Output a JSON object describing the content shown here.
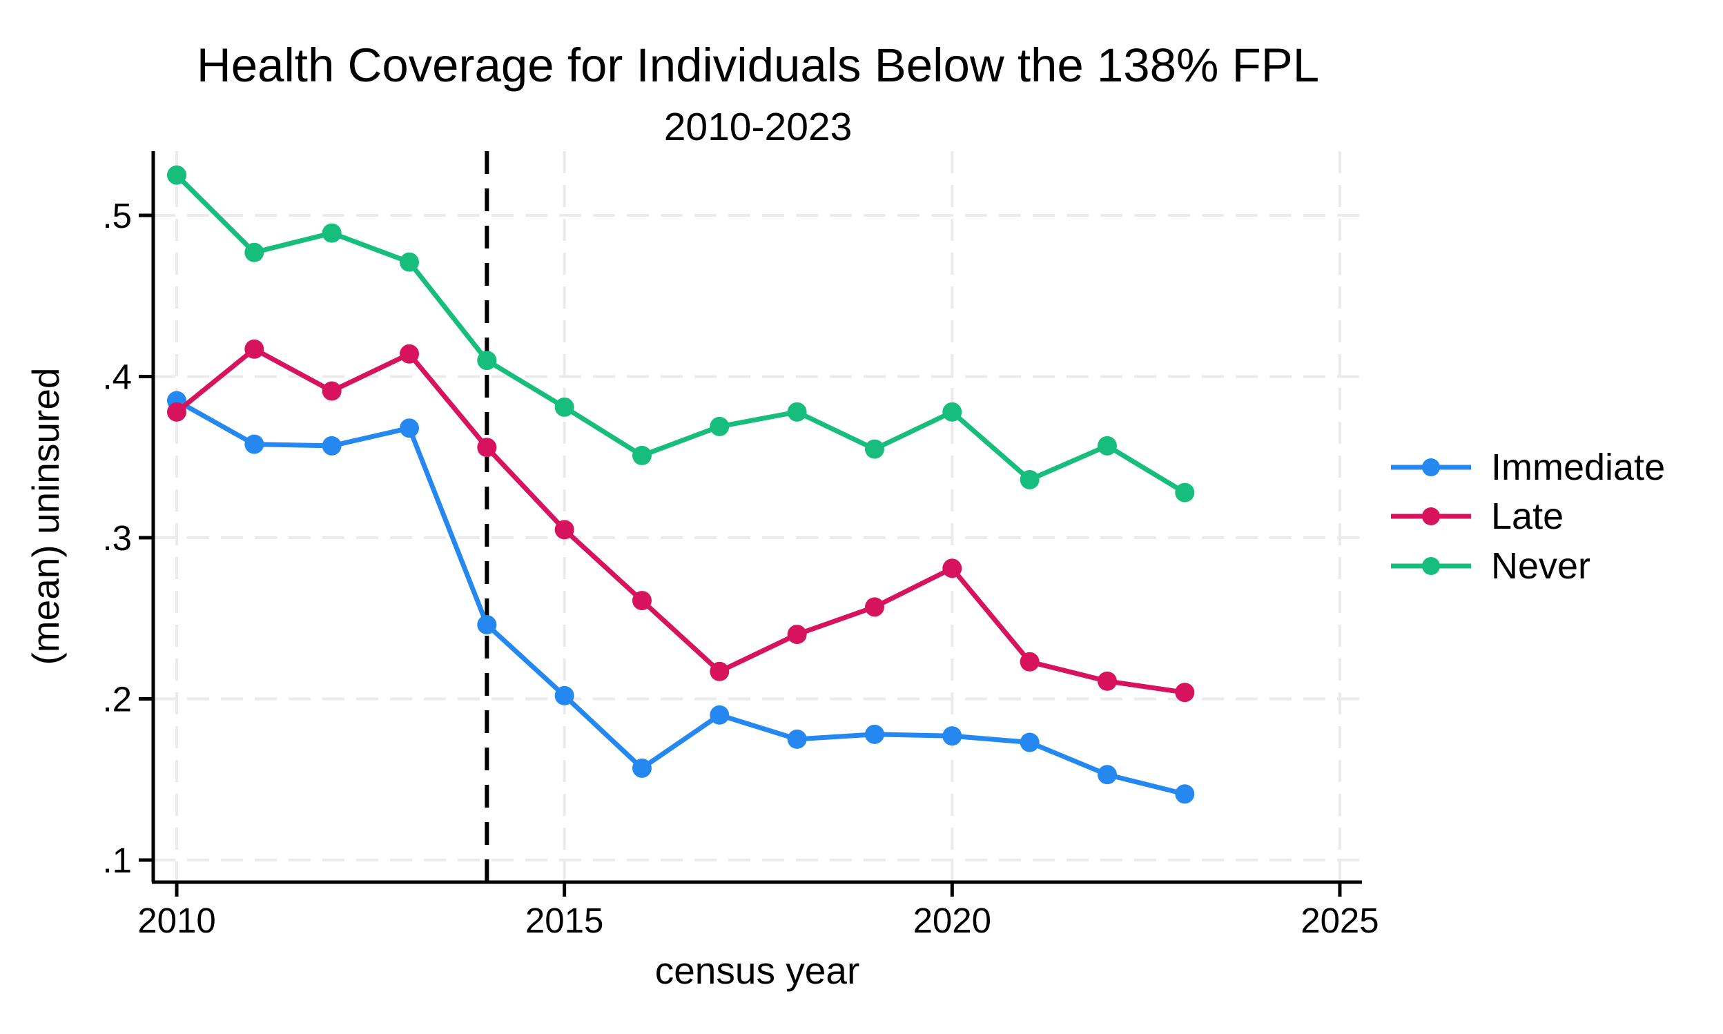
{
  "page": {
    "background": "#ffffff",
    "text_color": "#000000",
    "grid_color": "#EBEBEB"
  },
  "chart_data": {
    "type": "line",
    "title": "Health Coverage for Individuals Below the 138% FPL",
    "subtitle": "2010-2023",
    "xlabel": "census year",
    "ylabel": "(mean) uninsured",
    "x": [
      2010,
      2011,
      2012,
      2013,
      2014,
      2015,
      2016,
      2017,
      2018,
      2019,
      2020,
      2021,
      2022,
      2023
    ],
    "x_ticks": [
      2010,
      2015,
      2020,
      2025
    ],
    "x_tick_labels": [
      "2010",
      "2015",
      "2020",
      "2025"
    ],
    "y_ticks": [
      0.1,
      0.2,
      0.3,
      0.4,
      0.5
    ],
    "y_tick_labels": [
      ".1",
      ".2",
      ".3",
      ".4",
      ".5"
    ],
    "xlim": [
      2009.7,
      2025.3
    ],
    "ylim": [
      0.086,
      0.54
    ],
    "grid": "dashed",
    "legend_position": "right",
    "reference_line": {
      "x": 2014,
      "style": "dashed",
      "color": "#000000"
    },
    "series": [
      {
        "name": "Immediate",
        "color": "#2488F0",
        "values": [
          0.385,
          0.358,
          0.357,
          0.368,
          0.246,
          0.202,
          0.157,
          0.19,
          0.175,
          0.178,
          0.177,
          0.173,
          0.153,
          0.141
        ]
      },
      {
        "name": "Late",
        "color": "#D8135E",
        "values": [
          0.378,
          0.417,
          0.391,
          0.414,
          0.356,
          0.305,
          0.261,
          0.217,
          0.24,
          0.257,
          0.281,
          0.223,
          0.211,
          0.204
        ]
      },
      {
        "name": "Never",
        "color": "#16BD7C",
        "values": [
          0.525,
          0.477,
          0.489,
          0.471,
          0.41,
          0.381,
          0.351,
          0.369,
          0.378,
          0.355,
          0.378,
          0.336,
          0.357,
          0.328
        ]
      }
    ]
  }
}
